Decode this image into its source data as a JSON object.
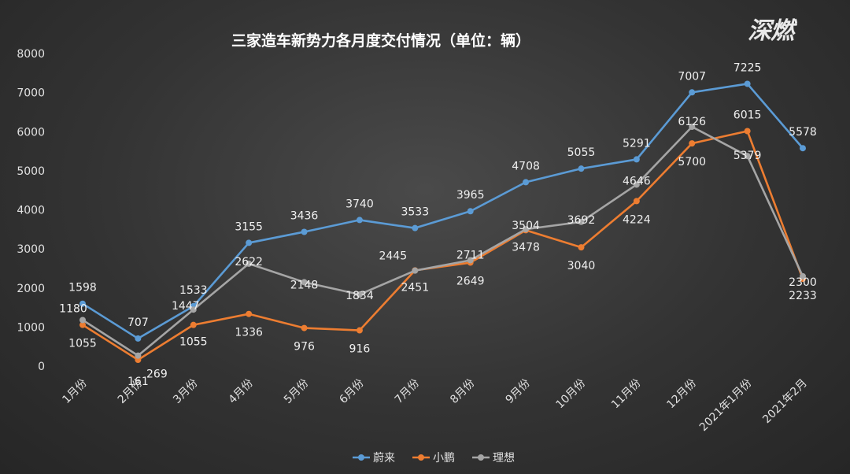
{
  "logo": "深燃",
  "chart_data": {
    "type": "line",
    "title": "三家造车新势力各月度交付情况（单位：辆）",
    "xlabel": "",
    "ylabel": "",
    "ylim": [
      0,
      8000
    ],
    "yticks": [
      0,
      1000,
      2000,
      3000,
      4000,
      5000,
      6000,
      7000,
      8000
    ],
    "grid": false,
    "legend": "bottom",
    "categories": [
      "1月份",
      "2月份",
      "3月份",
      "4月份",
      "5月份",
      "6月份",
      "7月份",
      "8月份",
      "9月份",
      "10月份",
      "11月份",
      "12月份",
      "2021年1月份",
      "2021年2月"
    ],
    "series": [
      {
        "name": "蔚来",
        "color": "#5b9bd5",
        "values": [
          1598,
          707,
          1533,
          3155,
          3436,
          3740,
          3533,
          3965,
          4708,
          5055,
          5291,
          7007,
          7225,
          5578
        ]
      },
      {
        "name": "小鹏",
        "color": "#ed7d31",
        "values": [
          1055,
          161,
          1055,
          1336,
          976,
          916,
          2451,
          2649,
          3478,
          3040,
          4224,
          5700,
          6015,
          2233
        ]
      },
      {
        "name": "理想",
        "color": "#a5a5a5",
        "values": [
          1180,
          269,
          1447,
          2622,
          2148,
          1834,
          2445,
          2711,
          3504,
          3692,
          4646,
          6126,
          5379,
          2300
        ]
      }
    ]
  }
}
